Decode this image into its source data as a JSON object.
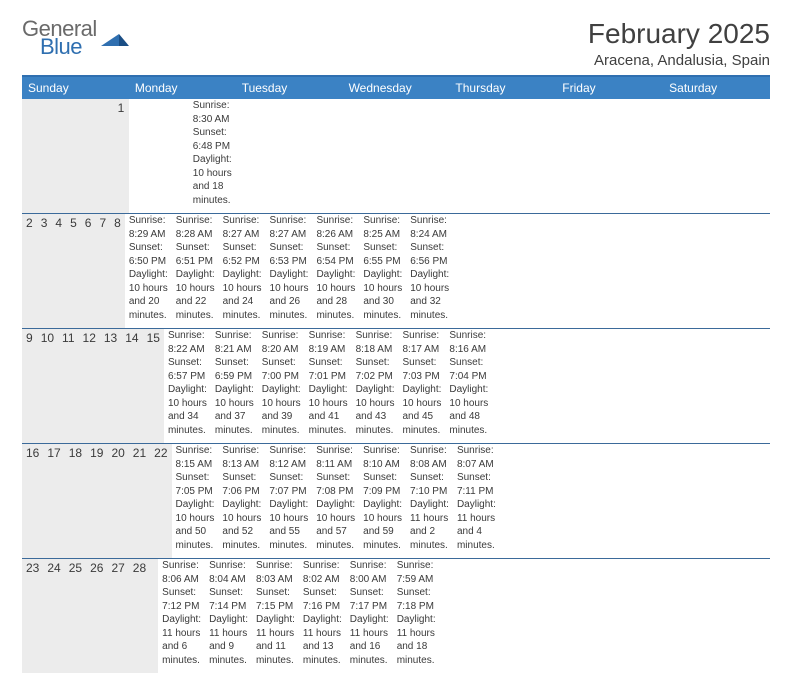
{
  "logo": {
    "general": "General",
    "blue": "Blue"
  },
  "title": "February 2025",
  "location": "Aracena, Andalusia, Spain",
  "dayNames": [
    "Sunday",
    "Monday",
    "Tuesday",
    "Wednesday",
    "Thursday",
    "Friday",
    "Saturday"
  ],
  "colors": {
    "headerBar": "#3b82c4",
    "topRule": "#2f6fb0",
    "weekRule": "#3b6a9a",
    "numStrip": "#ececec",
    "text": "#3a3a3a",
    "background": "#ffffff"
  },
  "typography": {
    "title_fontsize": 28,
    "location_fontsize": 15,
    "dayheader_fontsize": 12,
    "daynum_fontsize": 12,
    "body_fontsize": 10
  },
  "layout": {
    "cols": 7,
    "rows": 5,
    "leading_blanks": 6
  },
  "days": [
    {
      "n": "1",
      "sunrise": "8:30 AM",
      "sunset": "6:48 PM",
      "daylight": "10 hours and 18 minutes."
    },
    {
      "n": "2",
      "sunrise": "8:29 AM",
      "sunset": "6:50 PM",
      "daylight": "10 hours and 20 minutes."
    },
    {
      "n": "3",
      "sunrise": "8:28 AM",
      "sunset": "6:51 PM",
      "daylight": "10 hours and 22 minutes."
    },
    {
      "n": "4",
      "sunrise": "8:27 AM",
      "sunset": "6:52 PM",
      "daylight": "10 hours and 24 minutes."
    },
    {
      "n": "5",
      "sunrise": "8:27 AM",
      "sunset": "6:53 PM",
      "daylight": "10 hours and 26 minutes."
    },
    {
      "n": "6",
      "sunrise": "8:26 AM",
      "sunset": "6:54 PM",
      "daylight": "10 hours and 28 minutes."
    },
    {
      "n": "7",
      "sunrise": "8:25 AM",
      "sunset": "6:55 PM",
      "daylight": "10 hours and 30 minutes."
    },
    {
      "n": "8",
      "sunrise": "8:24 AM",
      "sunset": "6:56 PM",
      "daylight": "10 hours and 32 minutes."
    },
    {
      "n": "9",
      "sunrise": "8:22 AM",
      "sunset": "6:57 PM",
      "daylight": "10 hours and 34 minutes."
    },
    {
      "n": "10",
      "sunrise": "8:21 AM",
      "sunset": "6:59 PM",
      "daylight": "10 hours and 37 minutes."
    },
    {
      "n": "11",
      "sunrise": "8:20 AM",
      "sunset": "7:00 PM",
      "daylight": "10 hours and 39 minutes."
    },
    {
      "n": "12",
      "sunrise": "8:19 AM",
      "sunset": "7:01 PM",
      "daylight": "10 hours and 41 minutes."
    },
    {
      "n": "13",
      "sunrise": "8:18 AM",
      "sunset": "7:02 PM",
      "daylight": "10 hours and 43 minutes."
    },
    {
      "n": "14",
      "sunrise": "8:17 AM",
      "sunset": "7:03 PM",
      "daylight": "10 hours and 45 minutes."
    },
    {
      "n": "15",
      "sunrise": "8:16 AM",
      "sunset": "7:04 PM",
      "daylight": "10 hours and 48 minutes."
    },
    {
      "n": "16",
      "sunrise": "8:15 AM",
      "sunset": "7:05 PM",
      "daylight": "10 hours and 50 minutes."
    },
    {
      "n": "17",
      "sunrise": "8:13 AM",
      "sunset": "7:06 PM",
      "daylight": "10 hours and 52 minutes."
    },
    {
      "n": "18",
      "sunrise": "8:12 AM",
      "sunset": "7:07 PM",
      "daylight": "10 hours and 55 minutes."
    },
    {
      "n": "19",
      "sunrise": "8:11 AM",
      "sunset": "7:08 PM",
      "daylight": "10 hours and 57 minutes."
    },
    {
      "n": "20",
      "sunrise": "8:10 AM",
      "sunset": "7:09 PM",
      "daylight": "10 hours and 59 minutes."
    },
    {
      "n": "21",
      "sunrise": "8:08 AM",
      "sunset": "7:10 PM",
      "daylight": "11 hours and 2 minutes."
    },
    {
      "n": "22",
      "sunrise": "8:07 AM",
      "sunset": "7:11 PM",
      "daylight": "11 hours and 4 minutes."
    },
    {
      "n": "23",
      "sunrise": "8:06 AM",
      "sunset": "7:12 PM",
      "daylight": "11 hours and 6 minutes."
    },
    {
      "n": "24",
      "sunrise": "8:04 AM",
      "sunset": "7:14 PM",
      "daylight": "11 hours and 9 minutes."
    },
    {
      "n": "25",
      "sunrise": "8:03 AM",
      "sunset": "7:15 PM",
      "daylight": "11 hours and 11 minutes."
    },
    {
      "n": "26",
      "sunrise": "8:02 AM",
      "sunset": "7:16 PM",
      "daylight": "11 hours and 13 minutes."
    },
    {
      "n": "27",
      "sunrise": "8:00 AM",
      "sunset": "7:17 PM",
      "daylight": "11 hours and 16 minutes."
    },
    {
      "n": "28",
      "sunrise": "7:59 AM",
      "sunset": "7:18 PM",
      "daylight": "11 hours and 18 minutes."
    }
  ],
  "labels": {
    "sunrise": "Sunrise: ",
    "sunset": "Sunset: ",
    "daylight": "Daylight: "
  }
}
